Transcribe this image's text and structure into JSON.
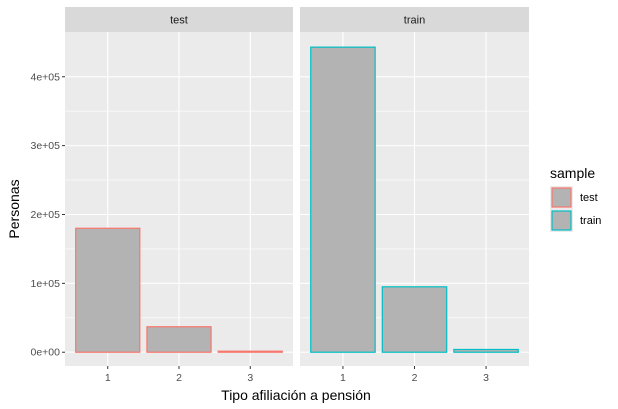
{
  "chart_data": {
    "type": "bar",
    "facet_by": "sample",
    "facets": [
      {
        "name": "test",
        "categories": [
          "1",
          "2",
          "3"
        ],
        "values": [
          180000,
          37000,
          1500
        ]
      },
      {
        "name": "train",
        "categories": [
          "1",
          "2",
          "3"
        ],
        "values": [
          443000,
          95000,
          4000
        ]
      }
    ],
    "xlabel": "Tipo afiliación a pensión",
    "ylabel": "Personas",
    "ylim": [
      -20000,
      465000
    ],
    "y_ticks": [
      0,
      100000,
      200000,
      300000,
      400000
    ],
    "y_tick_labels": [
      "0e+00",
      "1e+05",
      "2e+05",
      "3e+05",
      "4e+05"
    ],
    "legend": {
      "title": "sample",
      "position": "right",
      "entries": [
        {
          "label": "test",
          "color": "#F8766D"
        },
        {
          "label": "train",
          "color": "#00BFC4"
        }
      ]
    },
    "bar_fill": "#B3B3B3",
    "panel_background": "#EBEBEB",
    "strip_background": "#D9D9D9",
    "grid": true
  }
}
